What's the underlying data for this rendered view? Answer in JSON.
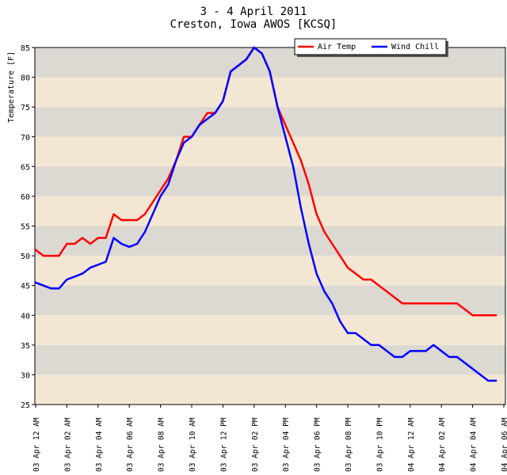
{
  "chart_data": {
    "type": "line",
    "title": "3 - 4 April 2011",
    "subtitle": "Creston, Iowa AWOS [KCSQ]",
    "ylabel": "Temperature [F]",
    "xlabel": "",
    "ylim": [
      25,
      85
    ],
    "y_ticks": [
      25,
      30,
      35,
      40,
      45,
      50,
      55,
      60,
      65,
      70,
      75,
      80,
      85
    ],
    "x_ticks": [
      "03 Apr 12 AM",
      "03 Apr 02 AM",
      "03 Apr 04 AM",
      "03 Apr 06 AM",
      "03 Apr 08 AM",
      "03 Apr 10 AM",
      "03 Apr 12 PM",
      "03 Apr 02 PM",
      "03 Apr 04 PM",
      "03 Apr 06 PM",
      "03 Apr 08 PM",
      "03 Apr 10 PM",
      "04 Apr 12 AM",
      "04 Apr 02 AM",
      "04 Apr 04 AM",
      "04 Apr 06 AM"
    ],
    "x_unit": "hours after 03 Apr 12 AM",
    "xlim": [
      0,
      30
    ],
    "grid": "horizontal alternating bands",
    "legend_position": "top-right",
    "colors": {
      "band_gray": "#dcd8d2",
      "band_beige": "#f3e7d3",
      "air_temp": "#ff0000",
      "wind_chill": "#0000ff"
    },
    "series": [
      {
        "name": "Air Temp",
        "color": "#ff0000",
        "x": [
          0,
          0.5,
          1,
          1.5,
          2,
          2.5,
          3,
          3.5,
          4,
          4.5,
          5,
          5.5,
          6,
          6.5,
          7,
          7.5,
          8,
          8.5,
          9,
          9.5,
          10,
          10.5,
          11,
          11.5,
          12,
          12.5,
          13,
          13.5,
          14,
          14.5,
          15,
          15.5,
          16,
          16.5,
          17,
          17.5,
          18,
          18.5,
          19,
          19.5,
          20,
          20.5,
          21,
          21.5,
          22,
          22.5,
          23,
          23.5,
          24,
          24.5,
          25,
          25.5,
          26,
          26.5,
          27,
          27.5,
          28,
          28.5,
          29,
          29.5
        ],
        "values": [
          51,
          50,
          50,
          50,
          52,
          52,
          53,
          52,
          53,
          53,
          57,
          56,
          56,
          56,
          57,
          59,
          61,
          63,
          66,
          70,
          70,
          72,
          74,
          74,
          76,
          81,
          82,
          83,
          85,
          84,
          81,
          75,
          72,
          69,
          66,
          62,
          57,
          54,
          52,
          50,
          48,
          47,
          46,
          46,
          45,
          44,
          43,
          42,
          42,
          42,
          42,
          42,
          42,
          42,
          42,
          41,
          40,
          40,
          40,
          40
        ]
      },
      {
        "name": "Wind Chill",
        "color": "#0000ff",
        "x": [
          0,
          0.5,
          1,
          1.5,
          2,
          2.5,
          3,
          3.5,
          4,
          4.5,
          5,
          5.5,
          6,
          6.5,
          7,
          7.5,
          8,
          8.5,
          9,
          9.5,
          10,
          10.5,
          11,
          11.5,
          12,
          12.5,
          13,
          13.5,
          14,
          14.5,
          15,
          15.5,
          16,
          16.5,
          17,
          17.5,
          18,
          18.5,
          19,
          19.5,
          20,
          20.5,
          21,
          21.5,
          22,
          22.5,
          23,
          23.5,
          24,
          24.5,
          25,
          25.5,
          26,
          26.5,
          27,
          27.5,
          28,
          28.5,
          29,
          29.5
        ],
        "values": [
          45.5,
          45,
          44.5,
          44.5,
          46,
          46.5,
          47,
          48,
          48.5,
          49,
          53,
          52,
          51.5,
          52,
          54,
          57,
          60,
          62,
          66,
          69,
          70,
          72,
          73,
          74,
          76,
          81,
          82,
          83,
          85,
          84,
          81,
          75,
          70,
          65,
          58,
          52,
          47,
          44,
          42,
          39,
          37,
          37,
          36,
          35,
          35,
          34,
          33,
          33,
          34,
          34,
          34,
          35,
          34,
          33,
          33,
          32,
          31,
          30,
          29,
          29
        ]
      }
    ]
  }
}
